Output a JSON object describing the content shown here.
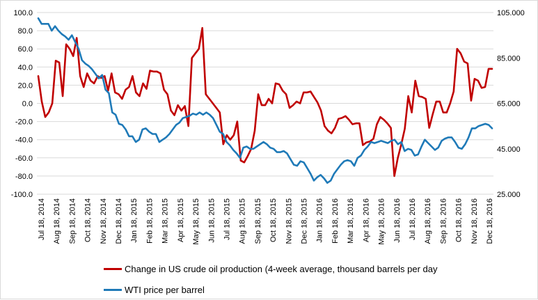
{
  "chart_data": {
    "type": "line",
    "x_tick_labels": [
      "Jul 18, 2014",
      "Aug 18, 2014",
      "Sep 18, 2014",
      "Oct 18, 2014",
      "Nov 18, 2014",
      "Dec 18, 2014",
      "Jan 18, 2015",
      "Feb 18, 2015",
      "Mar 18, 2015",
      "Apr 18, 2015",
      "May 18, 2015",
      "Jun 18, 2015",
      "Jul 18, 2015",
      "Aug 18, 2015",
      "Sep 18, 2015",
      "Oct 18, 2015",
      "Nov 18, 2015",
      "Dec 18, 2015",
      "Jan 18, 2016",
      "Feb 18, 2016",
      "Mar 18, 2016",
      "Apr 18, 2016",
      "May 18, 2016",
      "Jun 18, 2016",
      "Jul 18, 2016",
      "Aug 18, 2016",
      "Sep 18, 2016",
      "Oct 18, 2016",
      "Nov 18, 2016",
      "Dec 18, 2016"
    ],
    "left_axis": {
      "min": -100,
      "max": 100,
      "step": 20,
      "tick_labels": [
        "100.0",
        "80.0",
        "60.0",
        "40.0",
        "20.0",
        "0.0",
        "-20.0",
        "-40.0",
        "-60.0",
        "-80.0",
        "-100.0"
      ]
    },
    "right_axis": {
      "min": 25,
      "max": 105,
      "step": 20,
      "tick_labels": [
        "105.000",
        "85.000",
        "65.000",
        "45.000",
        "25.000"
      ]
    },
    "grid": "horizontal",
    "legend_position": "bottom",
    "series": [
      {
        "name": "Change in US crude oil production (4-week average, thousand barrels per day",
        "axis": "left",
        "color": "#c00000",
        "values": [
          30,
          2,
          -15,
          -10,
          0,
          47,
          45,
          8,
          65,
          60,
          52,
          72,
          30,
          18,
          33,
          25,
          22,
          30,
          28,
          30,
          14,
          33,
          12,
          10,
          5,
          15,
          18,
          30,
          12,
          8,
          22,
          16,
          36,
          35,
          35,
          33,
          15,
          10,
          -8,
          -13,
          -2,
          -8,
          -3,
          -25,
          50,
          55,
          60,
          83,
          10,
          5,
          0,
          -5,
          -10,
          -45,
          -35,
          -40,
          -35,
          -20,
          -63,
          -65,
          -58,
          -50,
          -30,
          10,
          -2,
          -2,
          5,
          0,
          22,
          21,
          14,
          10,
          -5,
          -2,
          2,
          0,
          12,
          12,
          13,
          7,
          1,
          -8,
          -25,
          -30,
          -33,
          -27,
          -17,
          -16,
          -14,
          -18,
          -23,
          -22,
          -22,
          -46,
          -43,
          -42,
          -39,
          -23,
          -15,
          -18,
          -22,
          -27,
          -80,
          -60,
          -45,
          -28,
          8,
          -10,
          25,
          8,
          7,
          5,
          -27,
          -12,
          2,
          2,
          -10,
          -10,
          0,
          13,
          60,
          55,
          46,
          44,
          3,
          27,
          25,
          17,
          18,
          38,
          38
        ]
      },
      {
        "name": "WTI price per barrel",
        "axis": "right",
        "color": "#1f7ab8",
        "values": [
          102.5,
          100,
          100,
          100,
          97,
          99,
          97,
          95.5,
          94.5,
          93,
          95,
          92,
          89,
          84,
          82.5,
          81.5,
          80,
          78,
          76,
          77.5,
          71,
          69.5,
          61,
          60,
          56,
          55.5,
          53.5,
          50.5,
          50.5,
          48,
          49,
          53.5,
          54,
          52.5,
          51.5,
          51.5,
          48,
          49,
          50,
          51.5,
          53.5,
          55.5,
          56.5,
          58.5,
          59,
          59.5,
          60.5,
          60,
          61,
          60,
          61,
          60,
          58.5,
          55.5,
          52.5,
          51.5,
          48,
          46.5,
          44.5,
          43,
          41,
          45.5,
          46,
          45,
          45,
          46,
          47,
          48,
          47,
          45.5,
          45,
          43.5,
          43.5,
          44,
          43,
          40.5,
          38,
          37.5,
          39.5,
          39,
          36.5,
          34,
          31,
          32.5,
          33.5,
          32,
          30,
          31,
          34,
          36,
          38,
          39.5,
          40,
          39.5,
          37.5,
          41,
          42,
          44.5,
          46,
          48,
          47.5,
          48,
          48.5,
          48,
          47.5,
          48.5,
          49,
          47,
          48,
          44,
          45,
          44.5,
          42,
          42.5,
          46,
          49,
          47.5,
          46,
          44.5,
          45.5,
          48.5,
          49.5,
          50,
          50,
          48,
          45.5,
          45,
          47,
          50,
          54,
          54,
          55,
          55.5,
          56,
          55.5,
          54
        ]
      }
    ]
  }
}
